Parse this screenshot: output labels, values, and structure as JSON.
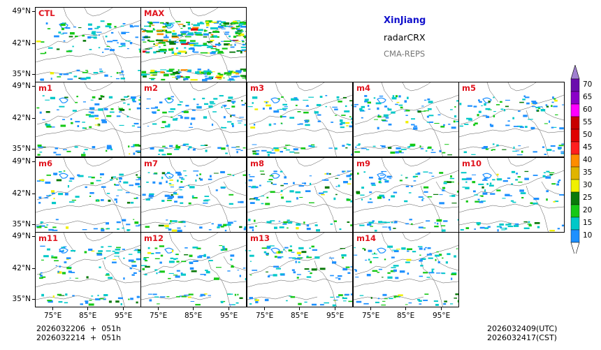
{
  "title": "XinJiang",
  "variable": "radarCRX",
  "source": "CMA-REPS",
  "panels": [
    "CTL",
    "MAX",
    "m1",
    "m2",
    "m3",
    "m4",
    "m5",
    "m6",
    "m7",
    "m8",
    "m9",
    "m10",
    "m11",
    "m12",
    "m13",
    "m14"
  ],
  "lat_labels": [
    "49°N",
    "42°N",
    "35°N"
  ],
  "lon_labels": [
    "75°E",
    "85°E",
    "95°E"
  ],
  "footer": {
    "left_line1": "2026032206  +  051h",
    "left_line2": "2026032214  +  051h",
    "right_line1": "2026032409(UTC)",
    "right_line2": "2026032417(CST)"
  },
  "colorbar": {
    "levels": [
      "70",
      "65",
      "60",
      "55",
      "50",
      "45",
      "40",
      "35",
      "30",
      "25",
      "20",
      "15",
      "10"
    ],
    "colors": [
      "#6a0dad",
      "#8a00c8",
      "#ff00ff",
      "#c80000",
      "#e00000",
      "#ff1e1e",
      "#ff8c00",
      "#e0b400",
      "#f0f000",
      "#0a7a0a",
      "#16c816",
      "#00c8c8",
      "#1e90ff"
    ],
    "over_color": "#a080d0"
  },
  "echo_colors": [
    "#1e90ff",
    "#00c8c8",
    "#16c816",
    "#0a7a0a",
    "#f0f000",
    "#e0b400",
    "#ff8c00",
    "#e00000"
  ]
}
